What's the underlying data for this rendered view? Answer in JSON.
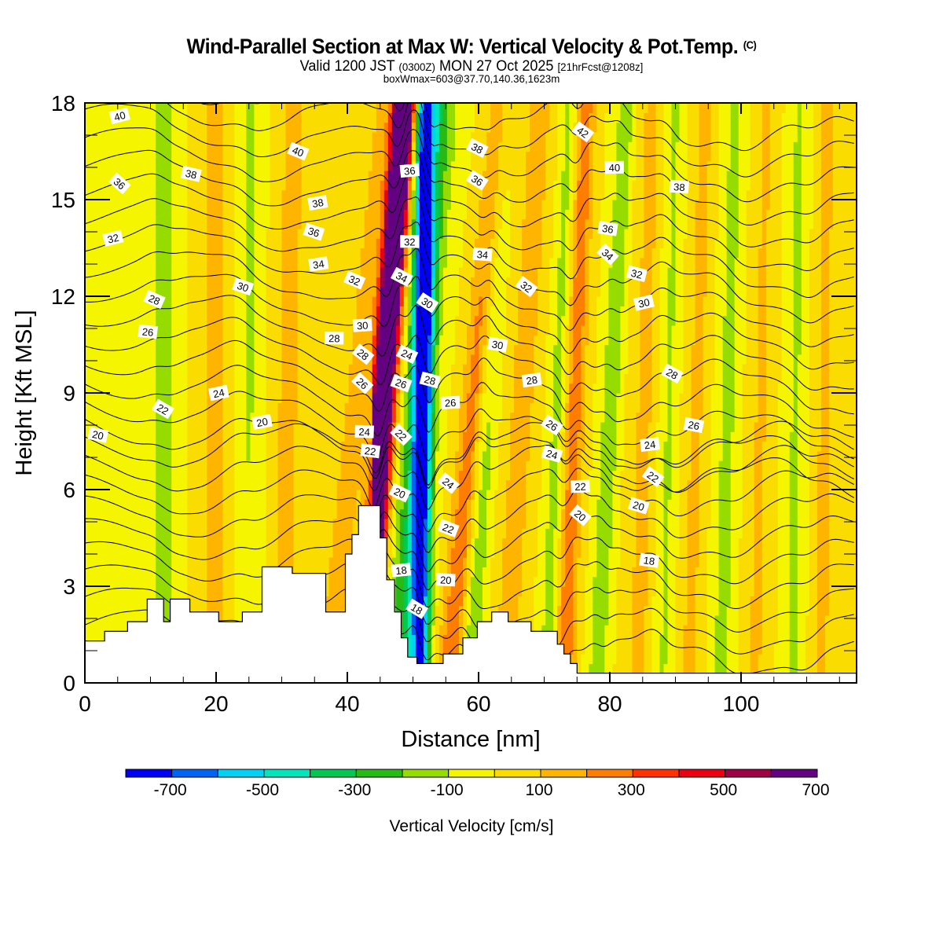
{
  "header": {
    "title": "Wind-Parallel Section at Max W: Vertical Velocity & Pot.Temp.",
    "title_mark": "(C)",
    "valid_prefix": "Valid 1200 JST",
    "valid_utc": "(0300Z)",
    "valid_date": "MON 27 Oct 2025",
    "forecast": "[21hrFcst@1208z]",
    "box_info": "boxWmax=603@37.70,140.36,1623m"
  },
  "chart_data": {
    "type": "heatmap",
    "title": "Wind-Parallel Section at Max W: Vertical Velocity & Pot.Temp.",
    "xlabel": "Distance [nm]",
    "ylabel": "Height [Kft MSL]",
    "xlim": [
      0,
      117.6
    ],
    "ylim": [
      0,
      18
    ],
    "x_ticks": [
      0,
      20,
      40,
      60,
      80,
      100
    ],
    "x_tick_labels": [
      "0",
      "20",
      "40",
      "60",
      "80",
      "100"
    ],
    "y_ticks": [
      0,
      3,
      6,
      9,
      12,
      15,
      18
    ],
    "y_tick_labels": [
      "0",
      "3",
      "6",
      "9",
      "12",
      "15",
      "18"
    ],
    "colorbar": {
      "label": "Vertical Velocity [cm/s]",
      "bounds": [
        -800,
        -700,
        -600,
        -500,
        -400,
        -300,
        -200,
        -100,
        0,
        100,
        200,
        300,
        400,
        500,
        600,
        700,
        800
      ],
      "tick_labels": [
        "-700",
        "-500",
        "-300",
        "-100",
        "100",
        "300",
        "500",
        "700"
      ],
      "colors": [
        "#0000f5",
        "#0064f5",
        "#00d2f5",
        "#00e6be",
        "#00c850",
        "#28b914",
        "#96dc00",
        "#f5f500",
        "#fadc00",
        "#ffb400",
        "#ff7d00",
        "#ff3200",
        "#eb0014",
        "#a00046",
        "#640082"
      ]
    },
    "contour_field": "Potential Temperature (isentropes)",
    "contour_labels": [
      {
        "x": 5.3,
        "y": 17.6,
        "v": "40"
      },
      {
        "x": 32.5,
        "y": 16.5,
        "v": "40"
      },
      {
        "x": 80.7,
        "y": 16.0,
        "v": "40"
      },
      {
        "x": 75.9,
        "y": 17.1,
        "v": "42"
      },
      {
        "x": 16.2,
        "y": 15.8,
        "v": "38"
      },
      {
        "x": 35.5,
        "y": 14.9,
        "v": "38"
      },
      {
        "x": 59.8,
        "y": 16.6,
        "v": "38"
      },
      {
        "x": 90.6,
        "y": 15.4,
        "v": "38"
      },
      {
        "x": 5.3,
        "y": 15.5,
        "v": "36"
      },
      {
        "x": 34.9,
        "y": 14.0,
        "v": "36"
      },
      {
        "x": 49.5,
        "y": 15.9,
        "v": "36"
      },
      {
        "x": 59.8,
        "y": 15.6,
        "v": "36"
      },
      {
        "x": 79.7,
        "y": 14.1,
        "v": "36"
      },
      {
        "x": 4.3,
        "y": 13.8,
        "v": "32"
      },
      {
        "x": 41.1,
        "y": 12.5,
        "v": "32"
      },
      {
        "x": 49.5,
        "y": 13.7,
        "v": "32"
      },
      {
        "x": 67.3,
        "y": 12.3,
        "v": "32"
      },
      {
        "x": 84.1,
        "y": 12.7,
        "v": "32"
      },
      {
        "x": 35.6,
        "y": 13.0,
        "v": "34"
      },
      {
        "x": 48.3,
        "y": 12.6,
        "v": "34"
      },
      {
        "x": 60.6,
        "y": 13.3,
        "v": "34"
      },
      {
        "x": 79.7,
        "y": 13.3,
        "v": "34"
      },
      {
        "x": 24.1,
        "y": 12.3,
        "v": "30"
      },
      {
        "x": 42.3,
        "y": 11.1,
        "v": "30"
      },
      {
        "x": 52.2,
        "y": 11.8,
        "v": "30"
      },
      {
        "x": 62.9,
        "y": 10.5,
        "v": "30"
      },
      {
        "x": 85.2,
        "y": 11.8,
        "v": "30"
      },
      {
        "x": 10.6,
        "y": 11.9,
        "v": "28"
      },
      {
        "x": 38.0,
        "y": 10.7,
        "v": "28"
      },
      {
        "x": 42.4,
        "y": 10.2,
        "v": "28"
      },
      {
        "x": 52.6,
        "y": 9.4,
        "v": "28"
      },
      {
        "x": 68.1,
        "y": 9.4,
        "v": "28"
      },
      {
        "x": 89.5,
        "y": 9.6,
        "v": "28"
      },
      {
        "x": 9.6,
        "y": 10.9,
        "v": "26"
      },
      {
        "x": 42.3,
        "y": 9.3,
        "v": "26"
      },
      {
        "x": 48.2,
        "y": 9.3,
        "v": "26"
      },
      {
        "x": 55.7,
        "y": 8.7,
        "v": "26"
      },
      {
        "x": 71.2,
        "y": 8.0,
        "v": "26"
      },
      {
        "x": 92.8,
        "y": 8.0,
        "v": "26"
      },
      {
        "x": 20.4,
        "y": 9.0,
        "v": "24"
      },
      {
        "x": 49.1,
        "y": 10.2,
        "v": "24"
      },
      {
        "x": 42.6,
        "y": 7.8,
        "v": "24"
      },
      {
        "x": 55.4,
        "y": 6.2,
        "v": "24"
      },
      {
        "x": 71.2,
        "y": 7.1,
        "v": "24"
      },
      {
        "x": 86.1,
        "y": 7.4,
        "v": "24"
      },
      {
        "x": 11.9,
        "y": 8.5,
        "v": "22"
      },
      {
        "x": 43.5,
        "y": 7.2,
        "v": "22"
      },
      {
        "x": 48.2,
        "y": 7.7,
        "v": "22"
      },
      {
        "x": 55.4,
        "y": 4.8,
        "v": "22"
      },
      {
        "x": 75.5,
        "y": 6.1,
        "v": "22"
      },
      {
        "x": 86.6,
        "y": 6.4,
        "v": "22"
      },
      {
        "x": 2.0,
        "y": 7.7,
        "v": "20"
      },
      {
        "x": 27.0,
        "y": 8.1,
        "v": "20"
      },
      {
        "x": 48.0,
        "y": 5.9,
        "v": "20"
      },
      {
        "x": 55.0,
        "y": 3.2,
        "v": "20"
      },
      {
        "x": 75.5,
        "y": 5.2,
        "v": "20"
      },
      {
        "x": 84.4,
        "y": 5.5,
        "v": "20"
      },
      {
        "x": 48.2,
        "y": 3.5,
        "v": "18"
      },
      {
        "x": 50.6,
        "y": 2.3,
        "v": "18"
      },
      {
        "x": 86.0,
        "y": 3.8,
        "v": "18"
      }
    ]
  }
}
